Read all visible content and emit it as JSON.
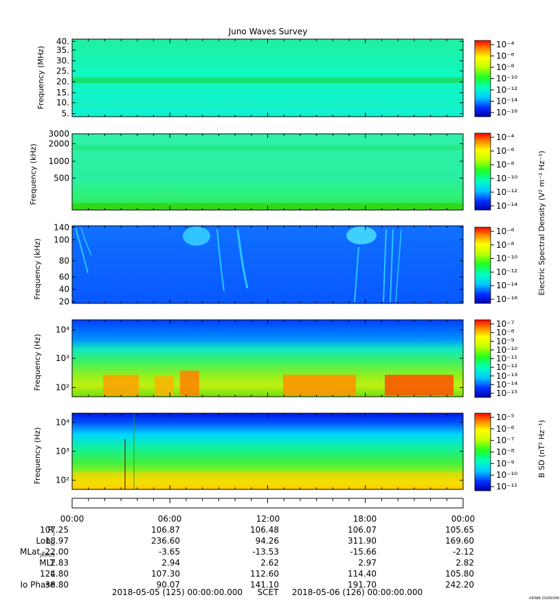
{
  "chart_data": {
    "type": "heatmap",
    "title": "Juno Waves Survey",
    "stamp": "UIOWA 20200306",
    "panels": [
      {
        "ylabel": "Frequency (MHz)",
        "yticks": [
          "40.",
          "35.",
          "30.",
          "25.",
          "20.",
          "15.",
          "10.",
          "5."
        ],
        "cbar_ticks": [
          "10⁻⁴",
          "10⁻⁶",
          "10⁻⁸",
          "10⁻¹⁰",
          "10⁻¹²",
          "10⁻¹⁴",
          "10⁻¹⁶"
        ],
        "dominant_level": "10⁻¹²",
        "features": "steady broadband background with a bright band near 21 MHz"
      },
      {
        "ylabel": "Frequency (kHz)",
        "yticks": [
          "3000",
          "2000",
          "1000",
          "500"
        ],
        "cbar_ticks": [
          "10⁻⁴",
          "10⁻⁶",
          "10⁻⁸",
          "10⁻¹⁰",
          "10⁻¹²",
          "10⁻¹⁴"
        ],
        "dominant_level": "10⁻¹¹",
        "features": "weak band near 1700 kHz, enhanced emission at lowest frequencies"
      },
      {
        "ylabel": "Frequency (kHz)",
        "yticks": [
          "140",
          "100",
          "80",
          "60",
          "40",
          "20"
        ],
        "cbar_ticks": [
          "10⁻⁶",
          "10⁻⁸",
          "10⁻¹⁰",
          "10⁻¹²",
          "10⁻¹⁴",
          "10⁻¹⁶"
        ],
        "dominant_level": "10⁻¹⁴",
        "features": "drifting emission arcs near 01:00, 08:00-10:00 and 19:00-20:00"
      },
      {
        "ylabel": "Frequency (Hz)",
        "yticks": [
          "10⁴",
          "10³",
          "10²"
        ],
        "cbar_ticks": [
          "10⁻⁷",
          "10⁻⁸",
          "10⁻⁹",
          "10⁻¹⁰",
          "10⁻¹¹",
          "10⁻¹²",
          "10⁻¹³",
          "10⁻¹⁴",
          "10⁻¹⁵"
        ],
        "dominant_level": "10⁻¹¹",
        "features": "intense low-frequency emission below ~300 Hz, strongest around 06:00-07:00, 15:00-18:00 and 19:00-23:00"
      },
      {
        "ylabel": "Frequency (Hz)",
        "yticks": [
          "10⁴",
          "10³",
          "10²"
        ],
        "cbar_ticks": [
          "10⁻⁵",
          "10⁻⁶",
          "10⁻⁷",
          "10⁻⁸",
          "10⁻⁹",
          "10⁻¹⁰",
          "10⁻¹¹"
        ],
        "dominant_level": "10⁻⁸",
        "features": "magnetic spectral density increasing toward lowest frequencies; spikes near 03:00-03:30"
      }
    ],
    "colorbar_titles": [
      {
        "text": "Electric Spectral Density (V² m⁻² Hz⁻¹)",
        "panels": [
          1,
          2,
          3
        ]
      },
      {
        "text": "B SD (nT² Hz⁻¹)",
        "panels": [
          5
        ]
      }
    ],
    "x_tick_labels": [
      "00:00",
      "06:00",
      "12:00",
      "18:00",
      "00:00"
    ],
    "ephemeris": [
      {
        "label": "R",
        "sub": "J",
        "values": [
          "107.25",
          "106.87",
          "106.48",
          "106.07",
          "105.65"
        ]
      },
      {
        "label": "Lon",
        "sub": "III",
        "values": [
          "18.97",
          "236.60",
          "94.26",
          "311.90",
          "169.60"
        ]
      },
      {
        "label": "MLat",
        "sub": "JRM09",
        "values": [
          "-22.00",
          "-3.65",
          "-13.53",
          "-15.66",
          "-2.12"
        ]
      },
      {
        "label": "MLT",
        "sub": "",
        "values": [
          "2.83",
          "2.94",
          "2.62",
          "2.97",
          "2.82"
        ]
      },
      {
        "label": "L",
        "sub": "",
        "values": [
          "124.80",
          "107.30",
          "112.60",
          "114.40",
          "105.80"
        ]
      },
      {
        "label": "Io Phase",
        "sub": "",
        "values": [
          "38.80",
          "90.07",
          "141.10",
          "191.70",
          "242.20"
        ]
      }
    ],
    "time_range": {
      "start": "2018-05-05 (125) 00:00:00.000",
      "label": "SCET",
      "end": "2018-05-06 (126) 00:00:00.000"
    }
  }
}
